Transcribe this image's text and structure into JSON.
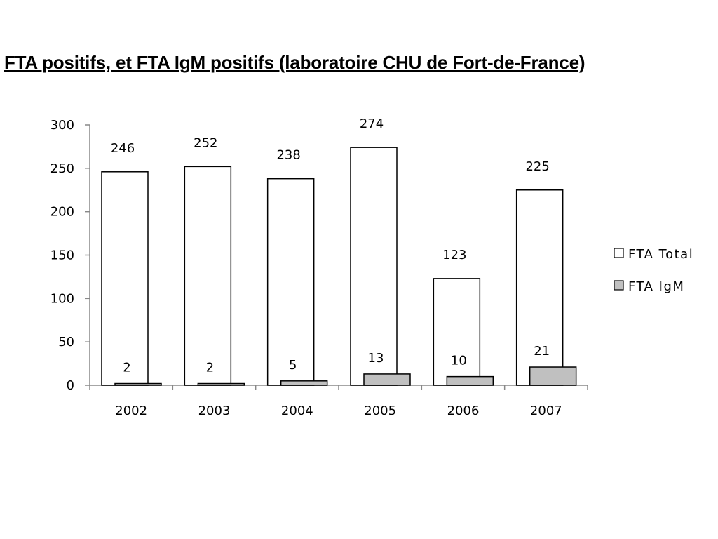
{
  "title": "FTA positifs, et FTA IgM positifs (laboratoire CHU de Fort-de-France)",
  "chart_data": {
    "type": "bar",
    "title": "FTA positifs, et FTA IgM positifs (laboratoire CHU de Fort-de-France)",
    "xlabel": "",
    "ylabel": "",
    "categories": [
      "2002",
      "2003",
      "2004",
      "2005",
      "2006",
      "2007"
    ],
    "series": [
      {
        "name": "FTA Total",
        "values": [
          246,
          252,
          238,
          274,
          123,
          225
        ],
        "color": "#ffffff"
      },
      {
        "name": "FTA IgM",
        "values": [
          2,
          2,
          5,
          13,
          10,
          21
        ],
        "color": "#c0c0c0"
      }
    ],
    "ylim": [
      0,
      300
    ],
    "yticks": [
      0,
      50,
      100,
      150,
      200,
      250,
      300
    ],
    "grid": false,
    "legend_position": "right"
  }
}
